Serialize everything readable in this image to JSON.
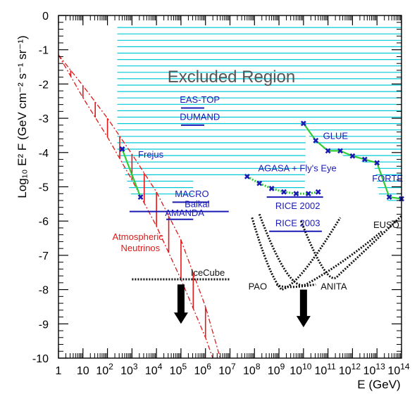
{
  "chart_data": {
    "type": "line",
    "title": "",
    "xlabel": "E (GeV)",
    "ylabel": "Log₁₀ E² F (GeV cm⁻² s⁻¹ sr⁻¹)",
    "xscale": "log",
    "xlim": [
      1,
      100000000000000
    ],
    "ylim": [
      -10,
      0
    ],
    "x_ticks": [
      {
        "exp": 0,
        "label": "1"
      },
      {
        "exp": 1,
        "label": "10"
      },
      {
        "exp": 2,
        "label": "10",
        "sup": "2"
      },
      {
        "exp": 3,
        "label": "10",
        "sup": "3"
      },
      {
        "exp": 4,
        "label": "10",
        "sup": "4"
      },
      {
        "exp": 5,
        "label": "10",
        "sup": "5"
      },
      {
        "exp": 6,
        "label": "10",
        "sup": "6"
      },
      {
        "exp": 7,
        "label": "10",
        "sup": "7"
      },
      {
        "exp": 8,
        "label": "10",
        "sup": "8"
      },
      {
        "exp": 9,
        "label": "10",
        "sup": "9"
      },
      {
        "exp": 10,
        "label": "10",
        "sup": "10"
      },
      {
        "exp": 11,
        "label": "10",
        "sup": "11"
      },
      {
        "exp": 12,
        "label": "10",
        "sup": "12"
      },
      {
        "exp": 13,
        "label": "10",
        "sup": "13"
      },
      {
        "exp": 14,
        "label": "10",
        "sup": "14"
      }
    ],
    "y_ticks": [
      "0",
      "-1",
      "-2",
      "-3",
      "-4",
      "-5",
      "-6",
      "-7",
      "-8",
      "-9",
      "-10"
    ],
    "excluded_region": {
      "label": "Excluded Region",
      "color": "#00c8d8",
      "outline": [
        [
          2.4,
          -0.2
        ],
        [
          14,
          -0.2
        ],
        [
          14,
          -5.45
        ],
        [
          13.6,
          -5.45
        ],
        [
          13.1,
          -5.3
        ],
        [
          12.9,
          -4.45
        ],
        [
          12.55,
          -4.3
        ],
        [
          12.25,
          -4.25
        ],
        [
          11.85,
          -4.15
        ],
        [
          11.45,
          -4.05
        ],
        [
          11.1,
          -3.92
        ],
        [
          10.85,
          -3.9
        ],
        [
          10.55,
          -3.85
        ],
        [
          10.2,
          -3.5
        ],
        [
          10.1,
          -3.3
        ],
        [
          10.05,
          -5.05
        ],
        [
          9.6,
          -5.15
        ],
        [
          9.0,
          -5.15
        ],
        [
          8.4,
          -4.95
        ],
        [
          7.9,
          -4.75
        ],
        [
          5.5,
          -4.75
        ],
        [
          5.5,
          -5.3
        ],
        [
          3.0,
          -5.3
        ],
        [
          2.4,
          -3.9
        ]
      ]
    },
    "limits": [
      {
        "name": "EAS-TOP",
        "x": [
          5.0,
          5.95
        ],
        "y": -2.7,
        "label_x": 4.95,
        "label_y": -2.55,
        "color": "#1a1ab4"
      },
      {
        "name": "DUMAND",
        "x": [
          5.0,
          5.95
        ],
        "y": -3.2,
        "label_x": 4.95,
        "label_y": -3.05,
        "color": "#1a1ab4"
      },
      {
        "name": "MACRO",
        "x": [
          4.65,
          6.15
        ],
        "y": -5.45,
        "label_x": 4.75,
        "label_y": -5.3,
        "color": "#1a1ab4"
      },
      {
        "name": "Baikal",
        "x": [
          2.9,
          6.95
        ],
        "y": -5.72,
        "label_x": 5.15,
        "label_y": -5.6,
        "color": "#1a1ab4"
      },
      {
        "name": "AMANDA",
        "x": [
          4.4,
          5.5
        ],
        "y": -5.95,
        "label_x": 4.35,
        "label_y": -5.85,
        "color": "#1a1ab4"
      },
      {
        "name": "RICE 2002",
        "x": [
          8.5,
          10.8
        ],
        "y": -5.3,
        "label_x": 8.85,
        "label_y": -5.65,
        "color": "#1a1ab4"
      },
      {
        "name": "RICE 2003",
        "x": [
          8.6,
          10.75
        ],
        "y": -6.3,
        "label_x": 8.85,
        "label_y": -6.15,
        "color": "#1a1ab4"
      }
    ],
    "sensitivities": [
      {
        "name": "GLUE",
        "label_x": 10.8,
        "label_y": -3.6,
        "color": "#1a1ab4",
        "x": [
          10.0,
          10.5,
          11.0,
          11.5,
          12.0,
          12.5,
          13.0,
          13.5,
          14.0
        ],
        "y": [
          -3.15,
          -3.65,
          -3.95,
          -3.95,
          -4.1,
          -4.2,
          -4.3,
          -5.3,
          -5.35
        ]
      },
      {
        "name": "AGASA + Fly's Eye",
        "label_x": 8.15,
        "label_y": -4.55,
        "color": "#1a1ab4",
        "x": [
          7.7,
          8.2,
          8.7,
          9.2,
          9.7,
          10.2,
          10.6
        ],
        "y": [
          -4.7,
          -4.9,
          -5.05,
          -5.15,
          -5.2,
          -5.2,
          -5.15
        ]
      },
      {
        "name": "FORTE",
        "label_x": 12.8,
        "label_y": -4.85,
        "color": "#1a1ab4"
      },
      {
        "name": "Frejus",
        "label_x": 3.25,
        "label_y": -4.15,
        "color": "#1a1ab4",
        "x": [
          2.6,
          3.35
        ],
        "y": [
          -3.9,
          -5.3
        ]
      }
    ],
    "projections": [
      {
        "name": "IceCube",
        "label_x": 5.4,
        "label_y": -7.6,
        "color": "#111111",
        "x": [
          3.0,
          7.0
        ],
        "y": [
          -7.7,
          -7.7
        ]
      },
      {
        "name": "PAO",
        "label_x": 7.75,
        "label_y": -8.0,
        "color": "#111111"
      },
      {
        "name": "ANITA",
        "label_x": 10.7,
        "label_y": -8.0,
        "color": "#111111"
      },
      {
        "name": "EUSO",
        "label_x": 12.85,
        "label_y": -6.2,
        "color": "#111111"
      }
    ],
    "atmospheric_neutrinos": {
      "name": "Atmospheric\nNeutrinos",
      "label_lines": [
        "Atmospheric",
        "Neutrinos"
      ],
      "label_x": 2.2,
      "label_y": -6.55,
      "color": "#e01818",
      "upper_x": [
        0,
        1,
        2,
        3,
        4,
        5,
        6,
        6.6
      ],
      "upper_y": [
        -1.15,
        -2.05,
        -3.0,
        -4.05,
        -5.15,
        -6.55,
        -8.5,
        -10.0
      ],
      "lower_x": [
        0,
        1,
        2,
        3,
        4,
        5,
        6,
        6.3
      ],
      "lower_y": [
        -1.15,
        -2.4,
        -3.55,
        -4.8,
        -6.15,
        -7.7,
        -9.4,
        -10.0
      ]
    },
    "arrows": [
      {
        "x": 5.0,
        "y_from": -7.85,
        "y_to": -9.0
      },
      {
        "x": 10.0,
        "y_from": -8.0,
        "y_to": -9.1
      }
    ]
  }
}
